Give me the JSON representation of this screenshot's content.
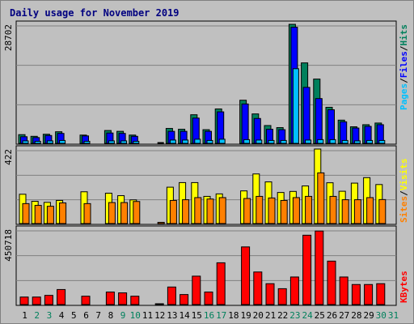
{
  "title": "Daily usage for November 2019",
  "colors": {
    "hits": "#00805c",
    "files": "#0000ff",
    "pages": "#00c0ff",
    "visits": "#ffff00",
    "sites": "#ff8000",
    "kbytes": "#ff0000",
    "weekend_label": "#00805c",
    "weekday_label": "#000000"
  },
  "legend": {
    "pages": "Pages",
    "files": "Files",
    "hits": "Hits",
    "visits": "Visits",
    "sites": "Sites",
    "kbytes": "KBytes",
    "sep": "/"
  },
  "chart_data": [
    {
      "type": "bar",
      "panel": "hits-files-pages",
      "ymax_label": "28702",
      "ylim": [
        0,
        28702
      ],
      "x": [
        1,
        2,
        3,
        4,
        5,
        6,
        7,
        8,
        9,
        10,
        11,
        12,
        13,
        14,
        15,
        16,
        17,
        18,
        19,
        20,
        21,
        22,
        23,
        24,
        25,
        26,
        27,
        28,
        29,
        30,
        31
      ],
      "series": [
        {
          "name": "Hits",
          "values": [
            2100,
            1700,
            2200,
            2800,
            0,
            2000,
            0,
            3100,
            2900,
            2000,
            0,
            0,
            3600,
            3400,
            6900,
            3300,
            8300,
            0,
            10400,
            7100,
            4300,
            3800,
            28702,
            19400,
            15500,
            8700,
            5600,
            4000,
            4500,
            4900,
            0
          ]
        },
        {
          "name": "Files",
          "values": [
            1600,
            1400,
            1900,
            2400,
            0,
            1800,
            0,
            2500,
            2400,
            1700,
            0,
            0,
            2900,
            2900,
            6100,
            2900,
            7600,
            0,
            9500,
            6000,
            3400,
            3300,
            28000,
            13500,
            10800,
            8100,
            5200,
            3700,
            4100,
            4500,
            0
          ]
        },
        {
          "name": "Pages",
          "values": [
            600,
            500,
            600,
            700,
            0,
            500,
            0,
            600,
            600,
            500,
            0,
            200,
            800,
            800,
            1000,
            700,
            1000,
            0,
            900,
            800,
            700,
            700,
            18000,
            800,
            900,
            900,
            700,
            600,
            700,
            700,
            0
          ]
        }
      ]
    },
    {
      "type": "bar",
      "panel": "visits-sites",
      "ymax_label": "422",
      "ylim": [
        0,
        422
      ],
      "x": [
        1,
        2,
        3,
        4,
        5,
        6,
        7,
        8,
        9,
        10,
        11,
        12,
        13,
        14,
        15,
        16,
        17,
        18,
        19,
        20,
        21,
        22,
        23,
        24,
        25,
        26,
        27,
        28,
        29,
        30,
        31
      ],
      "series": [
        {
          "name": "Visits",
          "values": [
            166,
            126,
            120,
            131,
            0,
            180,
            0,
            172,
            158,
            134,
            0,
            0,
            206,
            232,
            232,
            154,
            168,
            0,
            185,
            281,
            236,
            176,
            182,
            213,
            422,
            231,
            183,
            229,
            260,
            221,
            0
          ]
        },
        {
          "name": "Sites",
          "values": [
            113,
            103,
            98,
            117,
            0,
            113,
            0,
            119,
            119,
            125,
            0,
            7,
            131,
            135,
            147,
            139,
            147,
            0,
            142,
            154,
            145,
            131,
            147,
            154,
            287,
            154,
            135,
            135,
            147,
            136,
            0
          ]
        }
      ]
    },
    {
      "type": "bar",
      "panel": "kbytes",
      "ymax_label": "450718",
      "ylim": [
        0,
        450718
      ],
      "x": [
        1,
        2,
        3,
        4,
        5,
        6,
        7,
        8,
        9,
        10,
        11,
        12,
        13,
        14,
        15,
        16,
        17,
        18,
        19,
        20,
        21,
        22,
        23,
        24,
        25,
        26,
        27,
        28,
        29,
        30,
        31
      ],
      "series": [
        {
          "name": "KBytes",
          "values": [
            45000,
            45000,
            55000,
            90000,
            0,
            50000,
            0,
            75000,
            70000,
            50000,
            0,
            5000,
            105000,
            60000,
            170000,
            75000,
            250000,
            0,
            345000,
            195000,
            125000,
            95000,
            165000,
            415000,
            440000,
            260000,
            165000,
            120000,
            120000,
            125000,
            0
          ]
        }
      ]
    }
  ],
  "day_labels": [
    "1",
    "2",
    "3",
    "4",
    "5",
    "6",
    "7",
    "8",
    "9",
    "10",
    "11",
    "12",
    "13",
    "14",
    "15",
    "16",
    "17",
    "18",
    "19",
    "20",
    "21",
    "22",
    "23",
    "24",
    "25",
    "26",
    "27",
    "28",
    "29",
    "30",
    "31"
  ],
  "weekend_days": [
    2,
    3,
    9,
    10,
    16,
    17,
    23,
    24,
    30,
    31
  ]
}
